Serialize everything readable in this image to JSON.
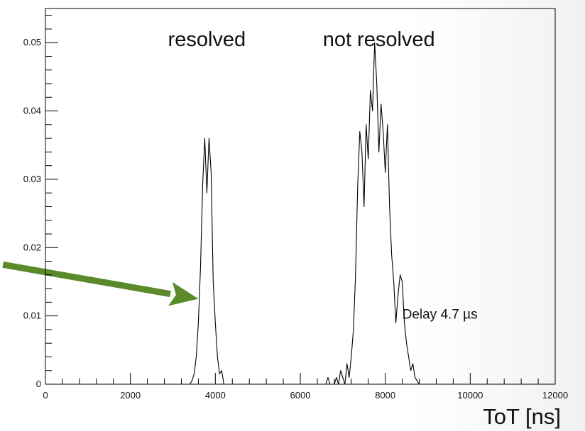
{
  "chart_data": {
    "type": "line",
    "xlabel": "ToT [ns]",
    "ylabel": "",
    "xlim": [
      0,
      12000
    ],
    "ylim": [
      0,
      0.055
    ],
    "x_ticks": [
      0,
      2000,
      4000,
      6000,
      8000,
      10000,
      12000
    ],
    "x_tick_labels": [
      "0",
      "2000",
      "4000",
      "6000",
      "8000",
      "10000",
      "12000"
    ],
    "y_ticks": [
      0,
      0.01,
      0.02,
      0.03,
      0.04,
      0.05
    ],
    "y_tick_labels": [
      "0",
      "0.01",
      "0.02",
      "0.03",
      "0.04",
      "0.05"
    ],
    "grid": false,
    "annotations": [
      {
        "text": "resolved",
        "x": 3800,
        "y": 0.0495
      },
      {
        "text": "not resolved",
        "x": 7850,
        "y": 0.0495
      },
      {
        "text": "Delay 4.7 µs",
        "x": 8400,
        "y": 0.0096
      }
    ],
    "arrow": {
      "from": [
        -1000,
        0.0175
      ],
      "to": [
        3600,
        0.0125
      ],
      "color": "#5a8a2a"
    },
    "series": [
      {
        "color": "#000000",
        "x": [
          3400,
          3450,
          3500,
          3550,
          3600,
          3650,
          3700,
          3750,
          3800,
          3850,
          3900,
          3950,
          4000,
          4050,
          4100,
          4150,
          4200,
          6600,
          6650,
          6700,
          6750,
          6800,
          6850,
          6900,
          6950,
          7000,
          7050,
          7100,
          7150,
          7200,
          7250,
          7300,
          7350,
          7400,
          7450,
          7500,
          7550,
          7600,
          7650,
          7700,
          7750,
          7800,
          7850,
          7900,
          7950,
          8000,
          8050,
          8100,
          8150,
          8200,
          8250,
          8300,
          8350,
          8400,
          8450,
          8500,
          8550,
          8600,
          8650,
          8700,
          8750,
          8800
        ],
        "y": [
          0.0,
          0.0005,
          0.0015,
          0.004,
          0.009,
          0.017,
          0.029,
          0.036,
          0.028,
          0.036,
          0.031,
          0.015,
          0.009,
          0.004,
          0.0015,
          0.002,
          0.0,
          0.0,
          0.001,
          0.0,
          0.0,
          0.0,
          0.001,
          0.0,
          0.002,
          0.001,
          0.0,
          0.003,
          0.001,
          0.004,
          0.008,
          0.016,
          0.029,
          0.037,
          0.034,
          0.026,
          0.038,
          0.033,
          0.043,
          0.04,
          0.05,
          0.044,
          0.034,
          0.041,
          0.037,
          0.031,
          0.038,
          0.026,
          0.019,
          0.015,
          0.009,
          0.013,
          0.016,
          0.015,
          0.009,
          0.006,
          0.004,
          0.002,
          0.003,
          0.001,
          0.0005,
          0.0
        ]
      }
    ]
  }
}
